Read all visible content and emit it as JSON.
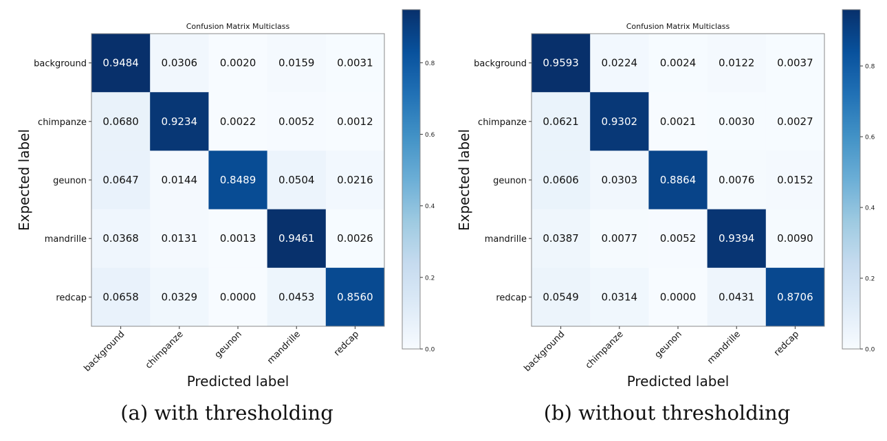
{
  "chart_data": [
    {
      "type": "heatmap",
      "title": "Confusion Matrix Multiclass",
      "caption": "(a) with thresholding",
      "xlabel": "Predicted label",
      "ylabel": "Expected label",
      "x_categories": [
        "background",
        "chimpanze",
        "geunon",
        "mandrille",
        "redcap"
      ],
      "y_categories": [
        "background",
        "chimpanze",
        "geunon",
        "mandrille",
        "redcap"
      ],
      "values": [
        [
          "0.9484",
          "0.0306",
          "0.0020",
          "0.0159",
          "0.0031"
        ],
        [
          "0.0680",
          "0.9234",
          "0.0022",
          "0.0052",
          "0.0012"
        ],
        [
          "0.0647",
          "0.0144",
          "0.8489",
          "0.0504",
          "0.0216"
        ],
        [
          "0.0368",
          "0.0131",
          "0.0013",
          "0.9461",
          "0.0026"
        ],
        [
          "0.0658",
          "0.0329",
          "0.0000",
          "0.0453",
          "0.8560"
        ]
      ],
      "colormap": "Blues",
      "colorbar_range": [
        0.0,
        0.9484
      ],
      "colorbar_ticks": [
        "0.0",
        "0.2",
        "0.4",
        "0.6",
        "0.8"
      ]
    },
    {
      "type": "heatmap",
      "title": "Confusion Matrix Multiclass",
      "caption": "(b) without thresholding",
      "xlabel": "Predicted label",
      "ylabel": "Expected label",
      "x_categories": [
        "background",
        "chimpanze",
        "geunon",
        "mandrille",
        "redcap"
      ],
      "y_categories": [
        "background",
        "chimpanze",
        "geunon",
        "mandrille",
        "redcap"
      ],
      "values": [
        [
          "0.9593",
          "0.0224",
          "0.0024",
          "0.0122",
          "0.0037"
        ],
        [
          "0.0621",
          "0.9302",
          "0.0021",
          "0.0030",
          "0.0027"
        ],
        [
          "0.0606",
          "0.0303",
          "0.8864",
          "0.0076",
          "0.0152"
        ],
        [
          "0.0387",
          "0.0077",
          "0.0052",
          "0.9394",
          "0.0090"
        ],
        [
          "0.0549",
          "0.0314",
          "0.0000",
          "0.0431",
          "0.8706"
        ]
      ],
      "colormap": "Blues",
      "colorbar_range": [
        0.0,
        0.9593
      ],
      "colorbar_ticks": [
        "0.0",
        "0.2",
        "0.4",
        "0.6",
        "0.8"
      ]
    }
  ]
}
